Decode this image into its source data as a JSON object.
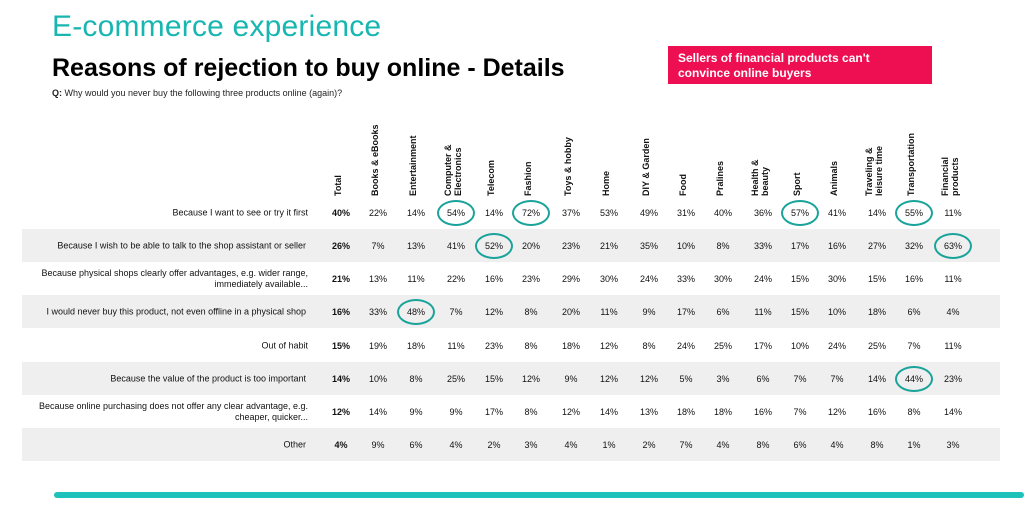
{
  "header": {
    "title": "E-commerce experience",
    "subtitle": "Reasons of rejection to buy online - Details",
    "question_prefix": "Q:",
    "question": "Why would you never buy the following three products online (again)?",
    "callout": "Sellers of financial products can't convince online buyers"
  },
  "columns": [
    "Total",
    "Books & eBooks",
    "Entertainment",
    "Computer & Electronics",
    "Telecom",
    "Fashion",
    "Toys & hobby",
    "Home",
    "DIY & Garden",
    "Food",
    "Pralines",
    "Health & beauty",
    "Sport",
    "Animals",
    "Traveling & leisure time",
    "Transportation",
    "Financial products"
  ],
  "rows": [
    {
      "label": "Because I want to see or try it first",
      "values": [
        "40%",
        "22%",
        "14%",
        "54%",
        "14%",
        "72%",
        "37%",
        "53%",
        "49%",
        "31%",
        "40%",
        "36%",
        "57%",
        "41%",
        "14%",
        "55%",
        "11%"
      ]
    },
    {
      "label": "Because I wish to be able to talk to the shop assistant or seller",
      "values": [
        "26%",
        "7%",
        "13%",
        "41%",
        "52%",
        "20%",
        "23%",
        "21%",
        "35%",
        "10%",
        "8%",
        "33%",
        "17%",
        "16%",
        "27%",
        "32%",
        "63%"
      ]
    },
    {
      "label": "Because physical shops clearly offer advantages, e.g. wider range, immediately available...",
      "values": [
        "21%",
        "13%",
        "11%",
        "22%",
        "16%",
        "23%",
        "29%",
        "30%",
        "24%",
        "33%",
        "30%",
        "24%",
        "15%",
        "30%",
        "15%",
        "16%",
        "11%"
      ]
    },
    {
      "label": "I would never buy this product, not even offline in a physical shop",
      "values": [
        "16%",
        "33%",
        "48%",
        "7%",
        "12%",
        "8%",
        "20%",
        "11%",
        "9%",
        "17%",
        "6%",
        "11%",
        "15%",
        "10%",
        "18%",
        "6%",
        "4%"
      ]
    },
    {
      "label": "Out of habit",
      "values": [
        "15%",
        "19%",
        "18%",
        "11%",
        "23%",
        "8%",
        "18%",
        "12%",
        "8%",
        "24%",
        "25%",
        "17%",
        "10%",
        "24%",
        "25%",
        "7%",
        "11%"
      ]
    },
    {
      "label": "Because the value of the product is too important",
      "values": [
        "14%",
        "10%",
        "8%",
        "25%",
        "15%",
        "12%",
        "9%",
        "12%",
        "12%",
        "5%",
        "3%",
        "6%",
        "7%",
        "7%",
        "14%",
        "44%",
        "23%"
      ]
    },
    {
      "label": "Because online purchasing does not offer any clear advantage, e.g. cheaper, quicker...",
      "values": [
        "12%",
        "14%",
        "9%",
        "9%",
        "17%",
        "8%",
        "12%",
        "14%",
        "13%",
        "18%",
        "18%",
        "16%",
        "7%",
        "12%",
        "16%",
        "8%",
        "14%"
      ]
    },
    {
      "label": "Other",
      "values": [
        "4%",
        "9%",
        "6%",
        "4%",
        "2%",
        "3%",
        "4%",
        "1%",
        "2%",
        "7%",
        "4%",
        "8%",
        "6%",
        "4%",
        "8%",
        "1%",
        "3%"
      ]
    }
  ],
  "highlights": [
    {
      "row": 0,
      "col": 3
    },
    {
      "row": 0,
      "col": 5
    },
    {
      "row": 0,
      "col": 12
    },
    {
      "row": 0,
      "col": 15
    },
    {
      "row": 1,
      "col": 4
    },
    {
      "row": 1,
      "col": 16
    },
    {
      "row": 3,
      "col": 2
    },
    {
      "row": 5,
      "col": 15
    }
  ],
  "colors": {
    "title": "#17b6b0",
    "callout": "#ee0f52",
    "ring": "#1aa39a",
    "bar": "#1ec2ba",
    "shade": "#efefef"
  }
}
